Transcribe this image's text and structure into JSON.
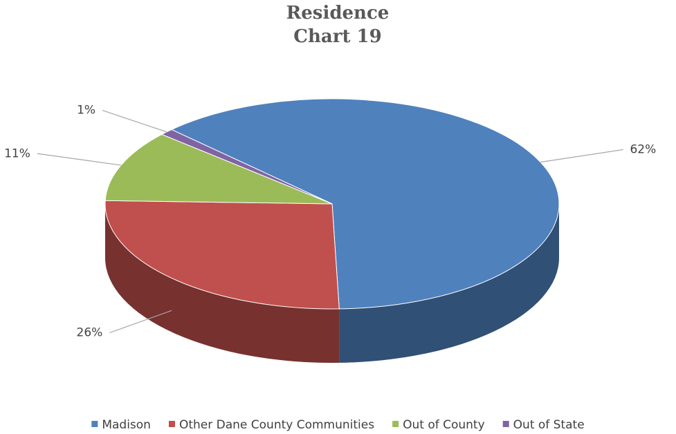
{
  "chart_data": {
    "type": "pie3d",
    "title": "Residence",
    "subtitle": "Chart 19",
    "categories": [
      "Madison",
      "Other Dane County Communities",
      "Out of County",
      "Out of State"
    ],
    "values": [
      62,
      26,
      11,
      1
    ],
    "value_labels": [
      "62%",
      "26%",
      "11%",
      "1%"
    ],
    "colors": [
      "#4f81bd",
      "#c0504d",
      "#9bbb59",
      "#8064a2"
    ],
    "legend": "bottom"
  }
}
